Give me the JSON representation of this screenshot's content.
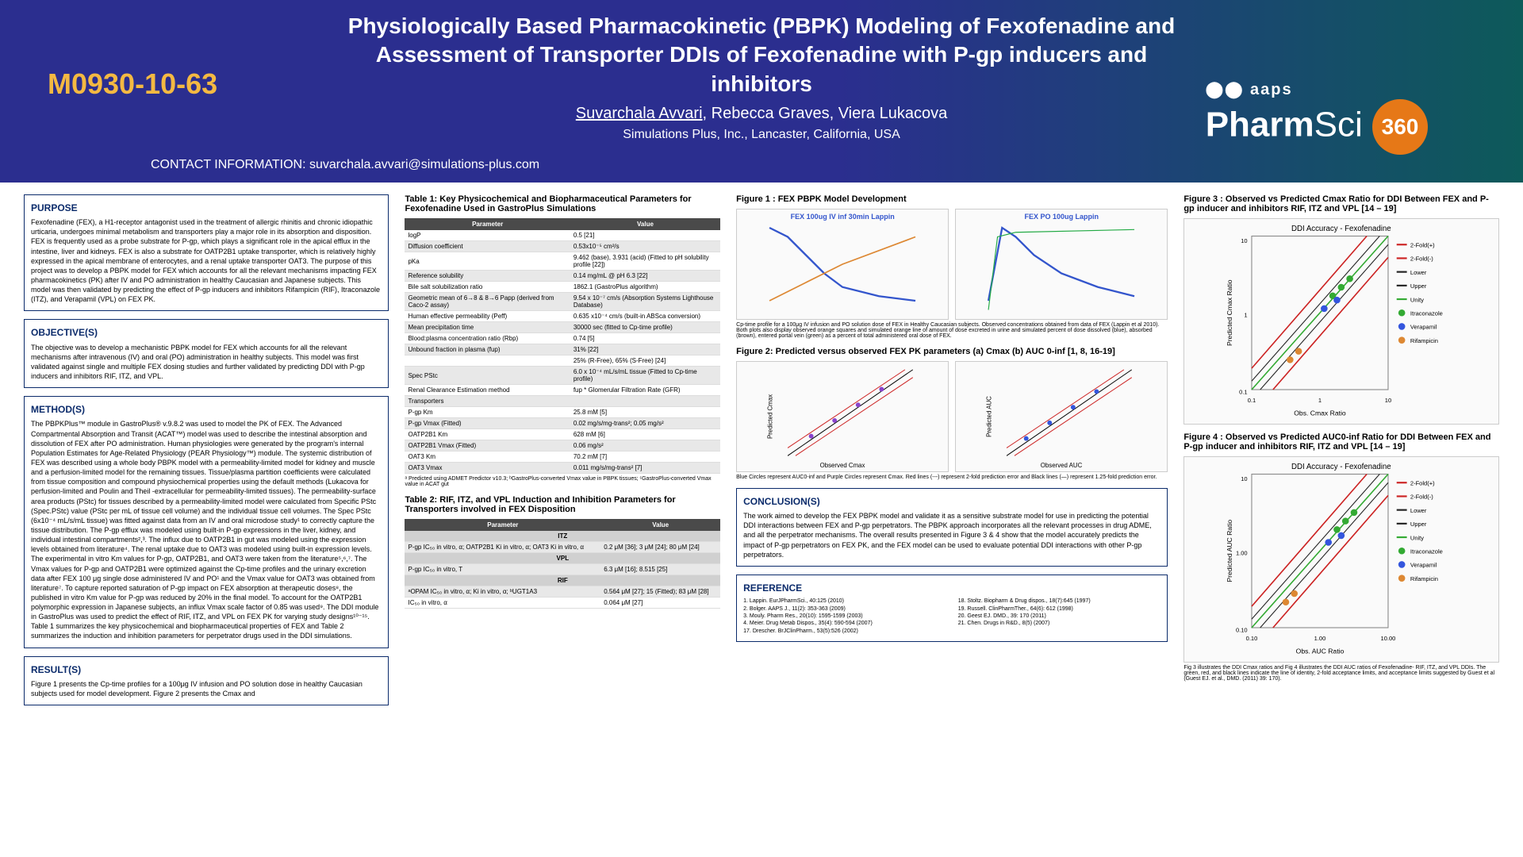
{
  "header": {
    "title": "Physiologically Based Pharmacokinetic (PBPK) Modeling of Fexofenadine and Assessment of Transporter DDIs of Fexofenadine with P-gp inducers and inhibitors",
    "poster_id": "M0930-10-63",
    "author_lead": "Suvarchala Avvari",
    "authors_rest": ", Rebecca Graves, Viera Lukacova",
    "affiliation": "Simulations Plus, Inc., Lancaster, California, USA",
    "contact_label": "CONTACT INFORMATION: ",
    "contact_email": "suvarchala.avvari@simulations-plus.com",
    "logo_prefix": "aaps",
    "logo_pharm": "Pharm",
    "logo_sci": "Sci",
    "logo_360": "360"
  },
  "purpose": {
    "heading": "PURPOSE",
    "text": "Fexofenadine (FEX), a H1-receptor antagonist used in the treatment of allergic rhinitis and chronic idiopathic urticaria, undergoes minimal metabolism and transporters play a major role in its absorption and disposition. FEX is frequently used as a probe substrate for P-gp, which plays a significant role in the apical efflux in the intestine, liver and kidneys. FEX is also a substrate for OATP2B1 uptake transporter, which is relatively highly expressed in the apical membrane of enterocytes, and a renal uptake transporter OAT3. The purpose of this project was to develop a PBPK model for FEX which accounts for all the relevant mechanisms impacting FEX pharmacokinetics (PK) after IV and PO administration in healthy Caucasian and Japanese subjects. This model was then validated by predicting the effect of P-gp inducers and inhibitors Rifampicin (RIF), Itraconazole (ITZ), and Verapamil (VPL) on FEX PK."
  },
  "objective": {
    "heading": "OBJECTIVE(S)",
    "text": "The objective was to develop a mechanistic PBPK model for FEX which accounts for all the relevant mechanisms after intravenous (IV) and oral (PO) administration in healthy subjects. This model was first validated against single and multiple FEX dosing studies and further validated by predicting DDI with P-gp inducers and inhibitors RIF, ITZ, and VPL."
  },
  "methods": {
    "heading": "METHOD(S)",
    "text": "The PBPKPlus™ module in GastroPlus® v.9.8.2 was used to model the PK of FEX. The Advanced Compartmental Absorption and Transit (ACAT™) model was used to describe the intestinal absorption and dissolution of FEX after PO administration. Human physiologies were generated by the program's internal Population Estimates for Age-Related Physiology (PEAR Physiology™) module. The systemic distribution of FEX was described using a whole body PBPK model with a permeability-limited model for kidney and muscle and a perfusion-limited model for the remaining tissues. Tissue/plasma partition coefficients were calculated from tissue composition and compound physiochemical properties using the default methods (Lukacova for perfusion-limited and Poulin and Theil -extracellular for permeability-limited tissues). The permeability-surface area products (PStc) for tissues described by a permeability-limited model were calculated from Specific PStc (Spec.PStc) value (PStc per mL of tissue cell volume) and the individual tissue cell volumes. The Spec PStc (6x10⁻⁴ mL/s/mL tissue) was fitted against data from an IV and oral microdose study¹ to correctly capture the tissue distribution. The P-gp efflux was modeled using built-in P-gp expressions in the liver, kidney, and individual intestinal compartments²,³. The influx due to OATP2B1 in gut was modeled using the expression levels obtained from literature⁴. The renal uptake due to OAT3 was modeled using built-in expression levels. The experimental in vitro Km values for P-gp, OATP2B1, and OAT3 were taken from the literature⁵,⁶,⁷. The Vmax values for P-gp and OATP2B1 were optimized against the Cp-time profiles and the urinary excretion data after FEX 100 μg single dose administered IV and PO¹ and the Vmax value for OAT3 was obtained from literature⁷. To capture reported saturation of P-gp impact on FEX absorption at therapeutic doses⁸, the published in vitro Km value for P-gp was reduced by 20% in the final model. To account for the OATP2B1 polymorphic expression in Japanese subjects, an influx Vmax scale factor of 0.85 was used⁹. The DDI module in GastroPlus was used to predict the effect of RIF, ITZ, and VPL on FEX PK for varying study designs¹⁰⁻¹⁵. Table 1 summarizes the key physicochemical and biopharmaceutical properties of FEX and Table 2 summarizes the induction and inhibition parameters for perpetrator drugs used in the DDI simulations."
  },
  "results": {
    "heading": "RESULT(S)",
    "text": "Figure 1 presents the Cp-time profiles for a 100μg IV infusion and PO solution dose in healthy Caucasian subjects used for model development. Figure 2 presents the Cmax and"
  },
  "table1": {
    "caption": "Table 1: Key Physicochemical and Biopharmaceutical Parameters for Fexofenadine Used in GastroPlus Simulations",
    "header": [
      "Parameter",
      "Value"
    ],
    "rows": [
      [
        "logP",
        "0.5 [21]"
      ],
      [
        "Diffusion coefficient",
        "0.53x10⁻⁵ cm²/s"
      ],
      [
        "pKa",
        "9.462 (base), 3.931 (acid) (Fitted to pH solubility profile [22])"
      ],
      [
        "Reference solubility",
        "0.14 mg/mL @ pH 6.3 [22]"
      ],
      [
        "Bile salt solubilization ratio",
        "1862.1 (GastroPlus algorithm)"
      ],
      [
        "Geometric mean of 6→8 & 8→6 Papp (derived from Caco-2 assay)",
        "9.54 x 10⁻⁷ cm/s (Absorption Systems Lighthouse Database)"
      ],
      [
        "Human effective permeability (Peff)",
        "0.635 x10⁻⁴ cm/s (built-in ABSca conversion)"
      ],
      [
        "Mean precipitation time",
        "30000 sec (fitted to Cp-time profile)"
      ],
      [
        "Blood:plasma concentration ratio (Rbp)",
        "0.74 [5]"
      ],
      [
        "Unbound fraction in plasma (fup)",
        "31% [22]"
      ],
      [
        "",
        "25% (R-Free), 65% (S-Free) [24]"
      ],
      [
        "Spec PStc",
        "6.0 x 10⁻⁴ mL/s/mL tissue (Fitted to Cp-time profile)"
      ],
      [
        "Renal Clearance Estimation method",
        "fup * Glomerular Filtration Rate (GFR)"
      ],
      [
        "Transporters",
        ""
      ],
      [
        "P-gp Km",
        "25.8 mM [5]"
      ],
      [
        "P-gp Vmax (Fitted)",
        "0.02 mg/s/mg-trans²; 0.05 mg/s²"
      ],
      [
        "OATP2B1 Km",
        "628 mM [6]"
      ],
      [
        "OATP2B1 Vmax (Fitted)",
        "0.06 mg/s²"
      ],
      [
        "OAT3 Km",
        "70.2 mM [7]"
      ],
      [
        "OAT3 Vmax",
        "0.011 mg/s/mg-trans² [7]"
      ]
    ],
    "footnote": "ᵃ Predicted using ADMET Predictor v10.3; ᵇGastroPlus-converted Vmax value in PBPK tissues; ᶜGastroPlus-converted Vmax value in ACAT gut"
  },
  "table2": {
    "caption": "Table 2: RIF, ITZ, and VPL Induction and Inhibition Parameters for Transporters involved in FEX Disposition",
    "header": [
      "Parameter",
      "Value"
    ],
    "sections": [
      {
        "name": "ITZ",
        "rows": [
          [
            "P-gp IC₅₀ in vitro, α; OATP2B1 Ki in vitro, α; OAT3 Ki in vitro, α",
            "0.2 μM [36]; 3 μM [24]; 80 μM [24]"
          ]
        ]
      },
      {
        "name": "VPL",
        "rows": [
          [
            "P-gp IC₅₀ in vitro, T",
            "6.3 μM [16]; 8.515 [25]"
          ]
        ]
      },
      {
        "name": "RIF",
        "rows": [
          [
            "ᵃOPAM IC₅₀ in vitro, α; Ki in vitro, α; ᵇUGT1A3",
            "0.564 μM [27]; 15 (Fitted); 83 μM [28]"
          ],
          [
            "IC₅₀ in vitro, α",
            "0.064 μM [27]"
          ]
        ]
      }
    ]
  },
  "fig1": {
    "caption": "Figure 1 : FEX PBPK Model Development",
    "left_label": "FEX 100ug IV inf 30min Lappin",
    "right_label": "FEX PO 100ug Lappin",
    "footnote": "Cp-time profile for a 100μg IV infusion and PO solution dose of FEX in Healthy Caucasian subjects. Observed concentrations obtained from data of FEX (Lappin et al 2010). Both plots also display observed orange squares and simulated orange line of amount of dose excreted in urine and simulated percent of dose dissolved (blue), absorbed (brown), entered portal vein (green) as a percent of total administered oral dose of FEX."
  },
  "fig2": {
    "caption": "Figure 2: Predicted versus observed FEX PK parameters (a) Cmax (b) AUC 0-inf [1, 8, 16-19]",
    "left_y": "Predicted Cmax",
    "left_x": "Observed Cmax",
    "right_y": "Predicted AUC",
    "right_x": "Observed AUC",
    "axis_min": "1.00",
    "axis_max": "10000.00",
    "footnote": "Blue Circles represent AUC0-inf and Purple Circles represent Cmax. Red lines (---) represent 2-fold prediction error and Black lines (—) represent 1.25-fold prediction error."
  },
  "conclusion": {
    "heading": "CONCLUSION(S)",
    "text": "The work aimed to develop the FEX PBPK model and validate it as a sensitive substrate model for use in predicting the potential DDI interactions between FEX and P-gp perpetrators. The PBPK approach incorporates all the relevant processes in drug ADME, and all the perpetrator mechanisms. The overall results presented in Figure 3 & 4 show that the model accurately predicts the impact of P-gp perpetrators on FEX PK, and the FEX model can be used to evaluate potential DDI interactions with other P-gp perpetrators."
  },
  "reference": {
    "heading": "REFERENCE",
    "items": [
      "1. Lappin. EurJPharmSci., 40:125 (2010)",
      "2. Bolger. AAPS J., 11(2): 353-363 (2009)",
      "3. Mouly. Pharm Res., 20(10): 1595-1599 (2003)",
      "4. Meier. Drug Metab Dispos., 35(4): 590-594 (2007)",
      "17. Drescher. BrJClinPharm., 53(5):526 (2002)",
      "18. Stoltz. Biopharm & Drug dispos., 18(7):645 (1997)",
      "19. Russell. ClinPharmTher., 64(6): 612 (1998)",
      "20. Geest EJ. DMD., 39: 170 (2011)",
      "21. Chen. Drugs in R&D., 8(5) (2007)"
    ]
  },
  "fig3": {
    "caption": "Figure 3 : Observed vs Predicted Cmax Ratio for DDI Between FEX and P-gp inducer and inhibitors RIF, ITZ and VPL [14 – 19]",
    "chart_title": "DDI Accuracy - Fexofenadine",
    "ylabel": "Predicted Cmax Ratio",
    "xlabel": "Obs. Cmax Ratio",
    "legend": [
      "2-Fold(+)",
      "2-Fold(-)",
      "Lower",
      "Upper",
      "Unity",
      "Itraconazole",
      "Verapamil",
      "Rifampicin"
    ],
    "legend_colors": [
      "#cc2222",
      "#cc2222",
      "#222222",
      "#222222",
      "#33aa33",
      "#33aa33",
      "#3355dd",
      "#dd8833"
    ]
  },
  "fig4": {
    "caption": "Figure 4 : Observed vs Predicted AUC0-inf Ratio for DDI Between FEX and P-gp inducer and inhibitors RIF, ITZ and VPL [14 – 19]",
    "chart_title": "DDI Accuracy - Fexofenadine",
    "ylabel": "Predicted AUC Ratio",
    "xlabel": "Obs. AUC Ratio",
    "footnote": "Fig 3 illustrates the DDI Cmax ratios and Fig 4 illustrates the DDI AUC ratios of Fexofenadine- RIF, ITZ, and VPL DDIs. The green, red, and black lines indicate the line of identity, 2-fold acceptance limits, and acceptance limits suggested by Guest et al (Guest EJ. et al., DMD. (2011) 39: 170)."
  },
  "chart_style": {
    "unity_color": "#33aa33",
    "fold_color": "#cc2222",
    "guest_color": "#222222",
    "itz_color": "#33aa33",
    "vpl_color": "#3355dd",
    "rif_color": "#dd8833",
    "axis_lim": [
      0.1,
      10
    ],
    "ticks": [
      0.1,
      1.0,
      10.0
    ]
  }
}
